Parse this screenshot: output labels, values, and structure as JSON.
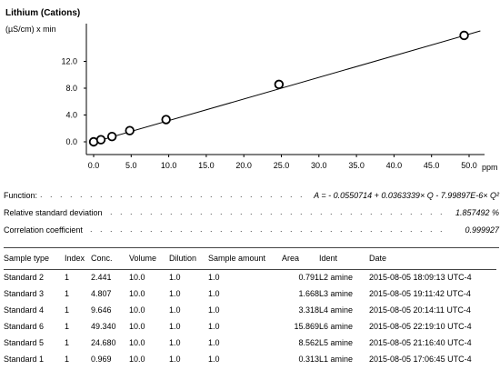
{
  "chart_data": {
    "type": "scatter",
    "title": "Lithium (Cations)",
    "ylabel": "(µS/cm) x min",
    "xlabel": "ppm",
    "xlim": [
      0,
      52
    ],
    "ylim": [
      -0.5,
      16
    ],
    "x_ticks": [
      0,
      5,
      10,
      15,
      20,
      25,
      30,
      35,
      40,
      45,
      50
    ],
    "x_tick_labels": [
      "0.0",
      "5.0",
      "10.0",
      "15.0",
      "20.0",
      "25.0",
      "30.0",
      "35.0",
      "40.0",
      "45.0",
      "50.0"
    ],
    "y_ticks": [
      0,
      4,
      8,
      12
    ],
    "y_tick_labels": [
      "0.0",
      "4.0",
      "8.0",
      "12.0"
    ],
    "points": [
      {
        "x": 0.0,
        "y": 0.0
      },
      {
        "x": 0.969,
        "y": 0.313
      },
      {
        "x": 2.441,
        "y": 0.791
      },
      {
        "x": 4.807,
        "y": 1.668
      },
      {
        "x": 9.646,
        "y": 3.318
      },
      {
        "x": 24.68,
        "y": 8.562
      },
      {
        "x": 49.34,
        "y": 15.869
      }
    ],
    "fit_line": {
      "x": [
        0,
        51.5
      ],
      "y": [
        -0.055,
        16.54
      ]
    }
  },
  "stats": {
    "function_label": "Function:",
    "function_value": "A = - 0.0550714 + 0.0363339× Q - 7.99897E-6× Q²",
    "rsd_label": "Relative standard deviation",
    "rsd_value": "1.857492 %",
    "corr_label": "Correlation coefficient",
    "corr_value": "0.999927",
    "dots": ". . . . . . . . . . . . . . . . . . . . . . . . . . . . . . . . . . . . . . . . . . . . . . . . . . . . . . . . . . . . . . . . . ."
  },
  "table": {
    "headers": [
      "Sample type",
      "Index",
      "Conc.",
      "Volume",
      "Dilution",
      "Sample amount",
      "Area",
      "Ident",
      "Date"
    ],
    "rows": [
      [
        "Standard 2",
        "1",
        "2.441",
        "10.0",
        "1.0",
        "1.0",
        "0.791",
        "L2 amine",
        "2015-08-05 18:09:13 UTC-4"
      ],
      [
        "Standard 3",
        "1",
        "4.807",
        "10.0",
        "1.0",
        "1.0",
        "1.668",
        "L3 amine",
        "2015-08-05 19:11:42 UTC-4"
      ],
      [
        "Standard 4",
        "1",
        "9.646",
        "10.0",
        "1.0",
        "1.0",
        "3.318",
        "L4 amine",
        "2015-08-05 20:14:11 UTC-4"
      ],
      [
        "Standard 6",
        "1",
        "49.340",
        "10.0",
        "1.0",
        "1.0",
        "15.869",
        "L6 amine",
        "2015-08-05 22:19:10 UTC-4"
      ],
      [
        "Standard 5",
        "1",
        "24.680",
        "10.0",
        "1.0",
        "1.0",
        "8.562",
        "L5 amine",
        "2015-08-05 21:16:40 UTC-4"
      ],
      [
        "Standard 1",
        "1",
        "0.969",
        "10.0",
        "1.0",
        "1.0",
        "0.313",
        "L1 amine",
        "2015-08-05 17:06:45 UTC-4"
      ]
    ]
  }
}
